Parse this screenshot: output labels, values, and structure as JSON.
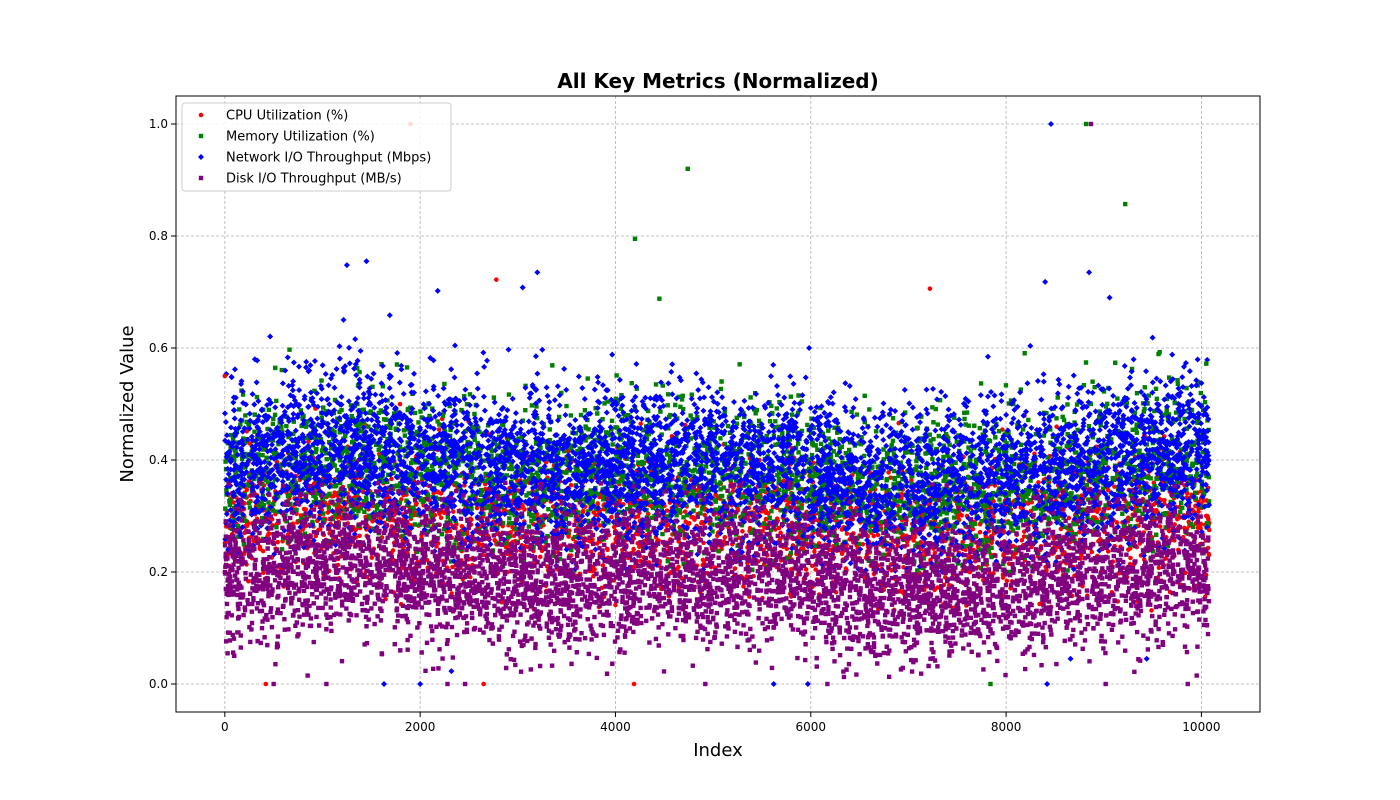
{
  "chart_data": {
    "type": "scatter",
    "title": "All Key Metrics (Normalized)",
    "xlabel": "Index",
    "ylabel": "Normalized Value",
    "xlim": [
      -500,
      10600
    ],
    "ylim": [
      -0.05,
      1.05
    ],
    "xticks": [
      0,
      2000,
      4000,
      6000,
      8000,
      10000
    ],
    "xtick_labels": [
      "0",
      "2000",
      "4000",
      "6000",
      "8000",
      "10000"
    ],
    "yticks": [
      0.0,
      0.2,
      0.4,
      0.6,
      0.8,
      1.0
    ],
    "ytick_labels": [
      "0.0",
      "0.2",
      "0.4",
      "0.6",
      "0.8",
      "1.0"
    ],
    "grid": true,
    "legend_position": "top-left",
    "n_points_per_series": 10080,
    "series": [
      {
        "name": "CPU Utilization (%)",
        "color": "#ff0000",
        "marker": "circle",
        "typical_range": [
          0.15,
          0.45
        ],
        "outliers": [
          {
            "x": 1900,
            "y": 1.0
          },
          {
            "x": 2780,
            "y": 0.722
          },
          {
            "x": 7220,
            "y": 0.706
          },
          {
            "x": 0,
            "y": 0.55
          },
          {
            "x": 420,
            "y": 0.0
          },
          {
            "x": 2650,
            "y": 0.0
          },
          {
            "x": 4190,
            "y": 0.0
          },
          {
            "x": 10080,
            "y": 0.275
          }
        ]
      },
      {
        "name": "Memory Utilization (%)",
        "color": "#008000",
        "marker": "square",
        "typical_range": [
          0.25,
          0.55
        ],
        "outliers": [
          {
            "x": 4740,
            "y": 0.92
          },
          {
            "x": 9220,
            "y": 0.857
          },
          {
            "x": 4200,
            "y": 0.795
          },
          {
            "x": 4450,
            "y": 0.688
          },
          {
            "x": 8820,
            "y": 1.0
          },
          {
            "x": 1380,
            "y": 0.557
          },
          {
            "x": 10050,
            "y": 0.572
          },
          {
            "x": 7840,
            "y": 0.0
          }
        ]
      },
      {
        "name": "Network I/O Throughput (Mbps)",
        "color": "#0000ff",
        "marker": "diamond",
        "typical_range": [
          0.25,
          0.6
        ],
        "outliers": [
          {
            "x": 8460,
            "y": 1.0
          },
          {
            "x": 1450,
            "y": 0.755
          },
          {
            "x": 1250,
            "y": 0.748
          },
          {
            "x": 3200,
            "y": 0.735
          },
          {
            "x": 8850,
            "y": 0.735
          },
          {
            "x": 8400,
            "y": 0.718
          },
          {
            "x": 3050,
            "y": 0.708
          },
          {
            "x": 2180,
            "y": 0.702
          },
          {
            "x": 9060,
            "y": 0.69
          },
          {
            "x": 1630,
            "y": 0.0
          },
          {
            "x": 2000,
            "y": 0.0
          },
          {
            "x": 5620,
            "y": 0.0
          },
          {
            "x": 5970,
            "y": 0.0
          },
          {
            "x": 8420,
            "y": 0.0
          },
          {
            "x": 8660,
            "y": 0.045
          },
          {
            "x": 9440,
            "y": 0.045
          },
          {
            "x": 2320,
            "y": 0.023
          }
        ]
      },
      {
        "name": "Disk I/O Throughput (MB/s)",
        "color": "#800080",
        "marker": "square",
        "typical_range": [
          0.0,
          0.32
        ],
        "outliers": [
          {
            "x": 8870,
            "y": 1.0
          },
          {
            "x": 500,
            "y": 0.0
          },
          {
            "x": 1040,
            "y": 0.0
          },
          {
            "x": 2280,
            "y": 0.0
          },
          {
            "x": 2460,
            "y": 0.0
          },
          {
            "x": 4920,
            "y": 0.0
          },
          {
            "x": 6170,
            "y": 0.0
          },
          {
            "x": 9020,
            "y": 0.0
          },
          {
            "x": 9860,
            "y": 0.0
          }
        ]
      }
    ]
  }
}
